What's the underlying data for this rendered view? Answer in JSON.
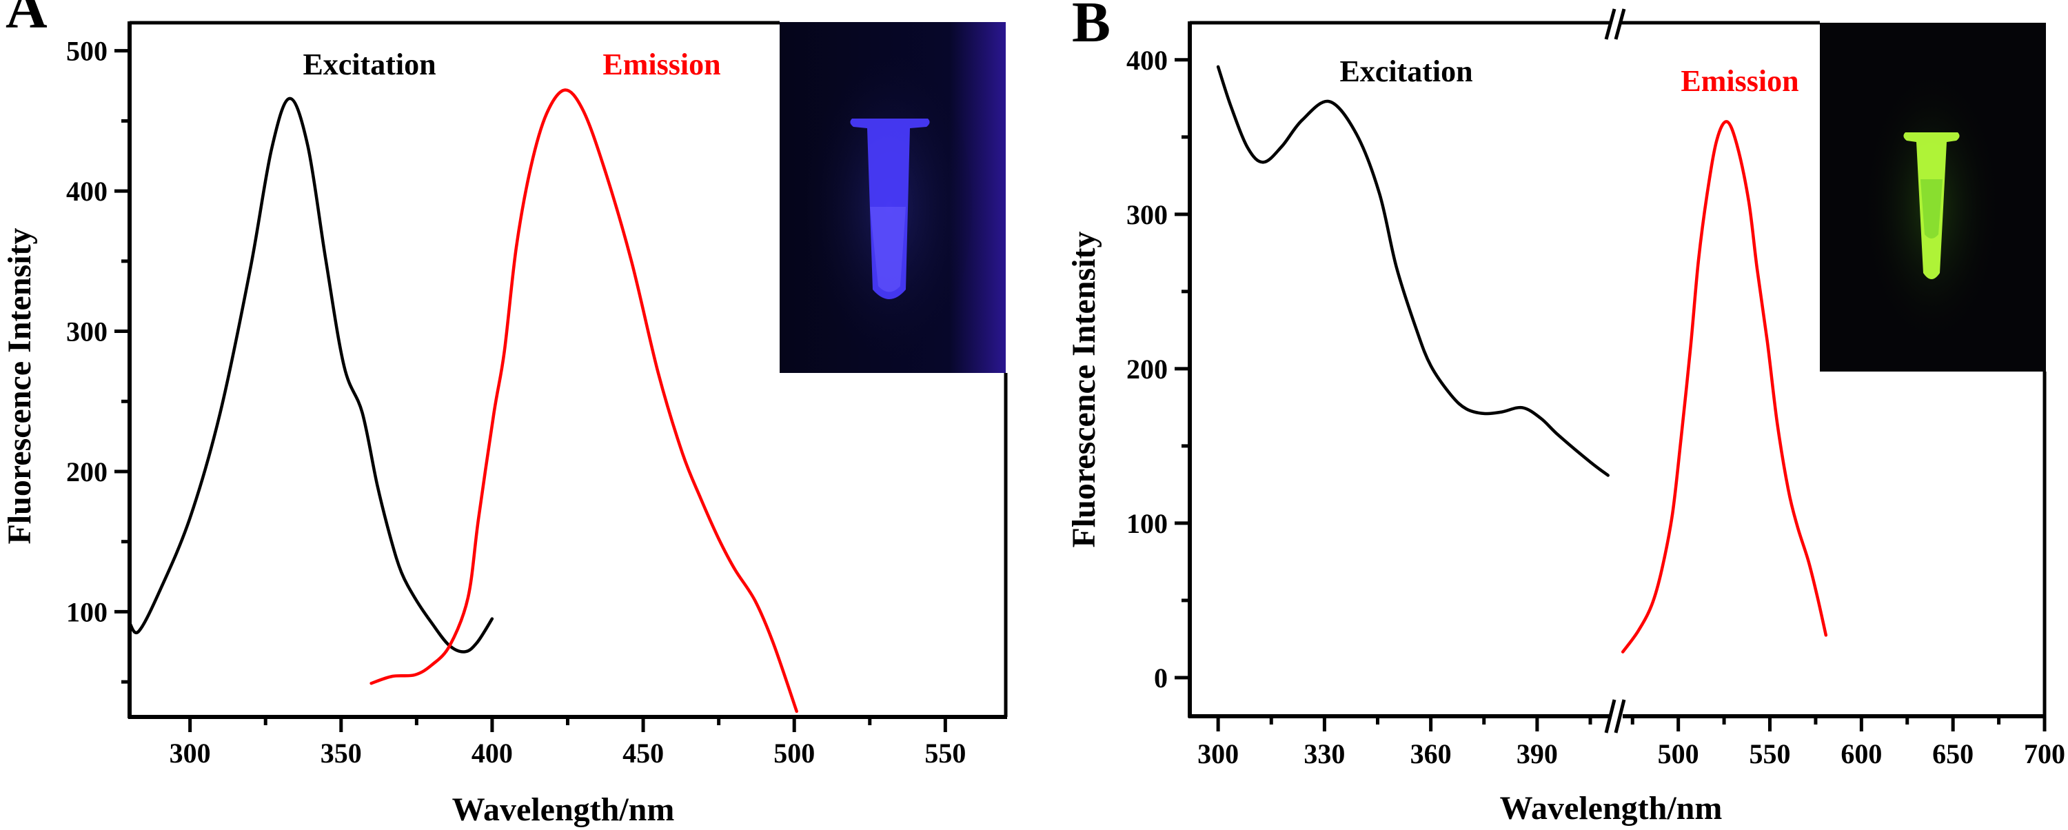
{
  "figure": {
    "panels": [
      "A",
      "B"
    ]
  },
  "chart_data": [
    {
      "panel": "A",
      "type": "line",
      "title": "",
      "xlabel": "Wavelength/nm",
      "ylabel": "Fluorescence Intensity",
      "xlim": [
        280,
        570
      ],
      "ylim": [
        25,
        520
      ],
      "xticks": [
        300,
        350,
        400,
        450,
        500,
        550
      ],
      "xtick_labels": [
        "300",
        "350",
        "400",
        "450",
        "500",
        "550"
      ],
      "x_minor_ticks": [
        325,
        375,
        425,
        475,
        525
      ],
      "yticks": [
        100,
        200,
        300,
        400,
        500
      ],
      "ytick_labels": [
        "100",
        "200",
        "300",
        "400",
        "500"
      ],
      "y_minor_ticks": [
        50,
        150,
        250,
        350,
        450
      ],
      "grid": false,
      "inset_photo": {
        "description_color": "#3b3bff",
        "background": "#06061a"
      },
      "series": [
        {
          "name": "Excitation",
          "color": "#000000",
          "x": [
            280,
            283,
            290,
            300,
            310,
            320,
            327,
            333,
            339,
            345,
            351,
            357,
            362,
            366.6,
            370,
            374.4,
            380,
            385.8,
            391,
            395,
            400
          ],
          "y": [
            92,
            86,
            115,
            167,
            242,
            345,
            430,
            466,
            432,
            350,
            275,
            242,
            190,
            151,
            128,
            110,
            92,
            76,
            71.5,
            78,
            95
          ]
        },
        {
          "name": "Emission",
          "color": "#ff0000",
          "x": [
            360,
            367,
            374.4,
            380,
            386,
            392,
            395.5,
            400.6,
            404,
            408,
            412.8,
            418,
            424,
            430,
            437,
            446,
            455,
            463,
            469,
            475,
            480.4,
            487,
            493,
            500.8
          ],
          "y": [
            49,
            54,
            55,
            62,
            76,
            110,
            166.6,
            242,
            285,
            360,
            417,
            455,
            472,
            458,
            417,
            351,
            270,
            213,
            181,
            152,
            130,
            108,
            78,
            29
          ]
        }
      ]
    },
    {
      "panel": "B",
      "type": "line",
      "title": "",
      "xlabel": "Wavelength/nm",
      "ylabel": "Fluorescence Intensity",
      "x_broken_axis": true,
      "x_segments": [
        [
          292,
          412
        ],
        [
          467,
          700
        ]
      ],
      "ylim": [
        -25,
        424
      ],
      "xticks": [
        300,
        330,
        360,
        390,
        500,
        550,
        600,
        650,
        700
      ],
      "xtick_labels": [
        "300",
        "330",
        "360",
        "390",
        "500",
        "550",
        "600",
        "650",
        "700"
      ],
      "x_minor_ticks": [
        315,
        345,
        375,
        405,
        475,
        525,
        575,
        625,
        675
      ],
      "yticks": [
        0,
        100,
        200,
        300,
        400
      ],
      "ytick_labels": [
        "0",
        "100",
        "200",
        "300",
        "400"
      ],
      "y_minor_ticks": [
        50,
        150,
        250,
        350
      ],
      "grid": false,
      "inset_photo": {
        "description_color": "#b8ff3a",
        "background": "#050508"
      },
      "series": [
        {
          "name": "Excitation",
          "color": "#000000",
          "x": [
            300,
            303.6,
            308.4,
            312.8,
            318,
            323.7,
            331.4,
            339,
            345.5,
            350.3,
            356,
            360,
            365.7,
            370,
            375,
            380,
            385.8,
            391,
            396,
            405,
            410
          ],
          "y": [
            395.5,
            370,
            342.8,
            333.7,
            344,
            361,
            373,
            352,
            313.5,
            265.7,
            225,
            202,
            183,
            174,
            171,
            172,
            174.8,
            168,
            157,
            139.6,
            131
          ]
        },
        {
          "name": "Emission",
          "color": "#ff0000",
          "x": [
            469.7,
            478,
            485.5,
            491,
            496.8,
            501.5,
            506.8,
            511,
            515.8,
            521,
            526.5,
            532,
            538.5,
            543,
            548.6,
            554,
            560,
            565,
            571,
            576,
            580.6
          ],
          "y": [
            16.7,
            30,
            47,
            70,
            106,
            155,
            215,
            270,
            313.5,
            348,
            360,
            345,
            308,
            265,
            217.6,
            165,
            122,
            98,
            75.7,
            52,
            27.5
          ]
        }
      ]
    }
  ]
}
